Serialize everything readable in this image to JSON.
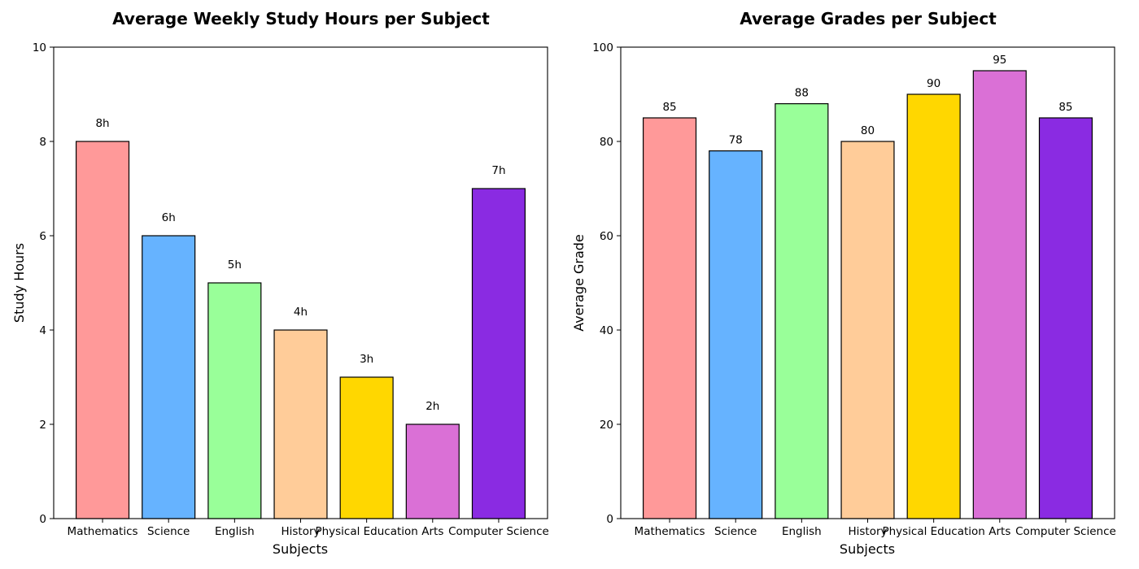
{
  "colors": [
    "#FF9999",
    "#66B3FF",
    "#99FF99",
    "#FFCC99",
    "#FFD700",
    "#DA70D6",
    "#8A2BE2"
  ],
  "chart_data": [
    {
      "type": "bar",
      "title": "Average Weekly Study Hours per Subject",
      "xlabel": "Subjects",
      "ylabel": "Study Hours",
      "categories": [
        "Mathematics",
        "Science",
        "English",
        "History",
        "Physical Education",
        "Arts",
        "Computer Science"
      ],
      "values": [
        8,
        6,
        5,
        4,
        3,
        2,
        7
      ],
      "data_labels": [
        "8h",
        "6h",
        "5h",
        "4h",
        "3h",
        "2h",
        "7h"
      ],
      "ylim": [
        0,
        10
      ],
      "yticks": [
        0,
        2,
        4,
        6,
        8,
        10
      ],
      "grid": false
    },
    {
      "type": "bar",
      "title": "Average Grades per Subject",
      "xlabel": "Subjects",
      "ylabel": "Average Grade",
      "categories": [
        "Mathematics",
        "Science",
        "English",
        "History",
        "Physical Education",
        "Arts",
        "Computer Science"
      ],
      "values": [
        85,
        78,
        88,
        80,
        90,
        95,
        85
      ],
      "data_labels": [
        "85",
        "78",
        "88",
        "80",
        "90",
        "95",
        "85"
      ],
      "ylim": [
        0,
        100
      ],
      "yticks": [
        0,
        20,
        40,
        60,
        80,
        100
      ],
      "grid": false
    }
  ]
}
